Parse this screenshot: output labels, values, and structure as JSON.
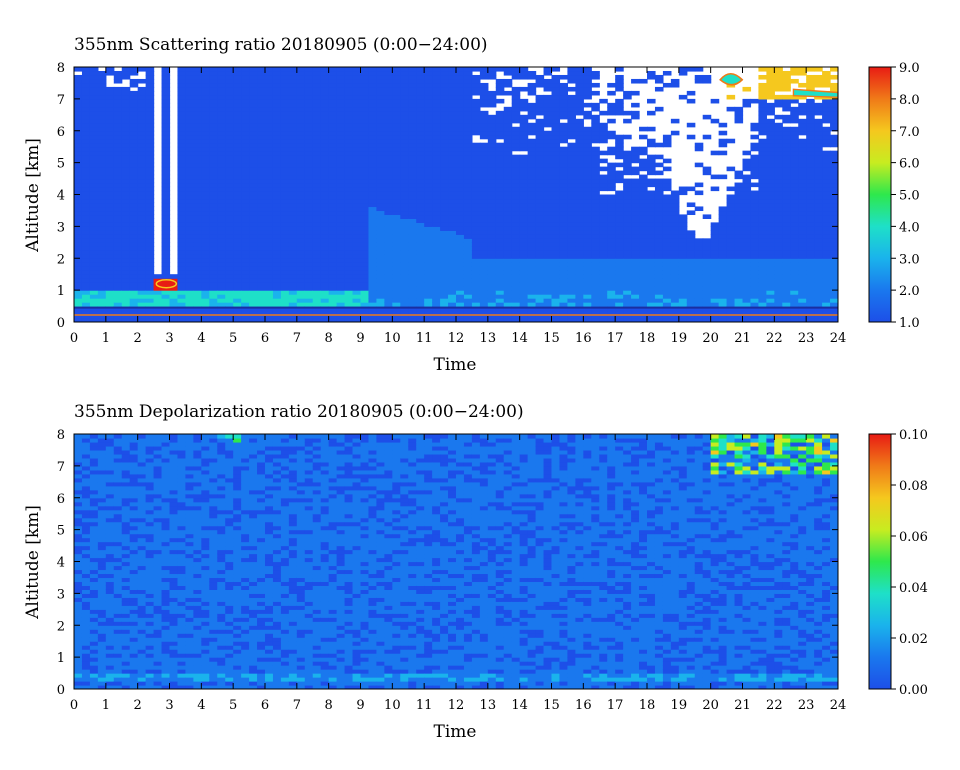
{
  "chart_data": [
    {
      "type": "heatmap",
      "title": "355nm Scattering ratio  20180905 (0:00−24:00)",
      "xlabel": "Time",
      "ylabel": "Altitude [km]",
      "xlim": [
        0,
        24
      ],
      "ylim": [
        0,
        8
      ],
      "x_ticks": [
        "0",
        "1",
        "2",
        "3",
        "4",
        "5",
        "6",
        "7",
        "8",
        "9",
        "10",
        "11",
        "12",
        "13",
        "14",
        "15",
        "16",
        "17",
        "18",
        "19",
        "20",
        "21",
        "22",
        "23",
        "24"
      ],
      "y_ticks": [
        "0",
        "1",
        "2",
        "3",
        "4",
        "5",
        "6",
        "7",
        "8"
      ],
      "colorbar": {
        "range": [
          1.0,
          9.0
        ],
        "ticks": [
          "1.0",
          "2.0",
          "3.0",
          "4.0",
          "5.0",
          "6.0",
          "7.0",
          "8.0",
          "9.0"
        ]
      },
      "features": [
        {
          "kind": "boundary-layer-aerosol",
          "t": [
            0,
            9.3
          ],
          "alt": [
            0.5,
            1.0
          ],
          "value": 3.8
        },
        {
          "kind": "aerosol-layer",
          "t": [
            9.3,
            24
          ],
          "alt": [
            0.5,
            2.0
          ],
          "value": 2.8
        },
        {
          "kind": "elevated-aerosol",
          "t": [
            9.3,
            12.5
          ],
          "alt": [
            1.0,
            3.6
          ],
          "value": 2.3
        },
        {
          "kind": "low-signal-gap",
          "t": [
            2.4,
            3.3
          ],
          "alt": [
            1.5,
            8.0
          ]
        },
        {
          "kind": "cloud-low",
          "t": [
            2.6,
            3.2
          ],
          "alt": [
            1.0,
            1.4
          ],
          "value": 8.5
        },
        {
          "kind": "cloud-high",
          "t": [
            20.0,
            24.0
          ],
          "alt": [
            7.0,
            8.0
          ],
          "value": 7.0
        },
        {
          "kind": "no-data-noise",
          "t": [
            16.5,
            21.5
          ],
          "alt": [
            2.6,
            8.0
          ]
        }
      ]
    },
    {
      "type": "heatmap",
      "title": "355nm Depolarization ratio  20180905 (0:00−24:00)",
      "xlabel": "Time",
      "ylabel": "Altitude [km]",
      "xlim": [
        0,
        24
      ],
      "ylim": [
        0,
        8
      ],
      "x_ticks": [
        "0",
        "1",
        "2",
        "3",
        "4",
        "5",
        "6",
        "7",
        "8",
        "9",
        "10",
        "11",
        "12",
        "13",
        "14",
        "15",
        "16",
        "17",
        "18",
        "19",
        "20",
        "21",
        "22",
        "23",
        "24"
      ],
      "y_ticks": [
        "0",
        "1",
        "2",
        "3",
        "4",
        "5",
        "6",
        "7",
        "8"
      ],
      "colorbar": {
        "range": [
          0.0,
          0.1
        ],
        "ticks": [
          "0.00",
          "0.02",
          "0.04",
          "0.06",
          "0.08",
          "0.10"
        ]
      },
      "features": [
        {
          "kind": "background",
          "t": [
            0,
            24
          ],
          "alt": [
            0,
            8
          ],
          "value": 0.012
        },
        {
          "kind": "near-surface-band",
          "t": [
            0,
            24
          ],
          "alt": [
            0.3,
            0.5
          ],
          "value": 0.02
        },
        {
          "kind": "cloud-high",
          "t": [
            20.0,
            24.0
          ],
          "alt": [
            6.8,
            8.0
          ],
          "value": 0.05
        },
        {
          "kind": "cloud-top",
          "t": [
            4.5,
            5.3
          ],
          "alt": [
            7.7,
            8.0
          ],
          "value": 0.05
        }
      ]
    }
  ]
}
